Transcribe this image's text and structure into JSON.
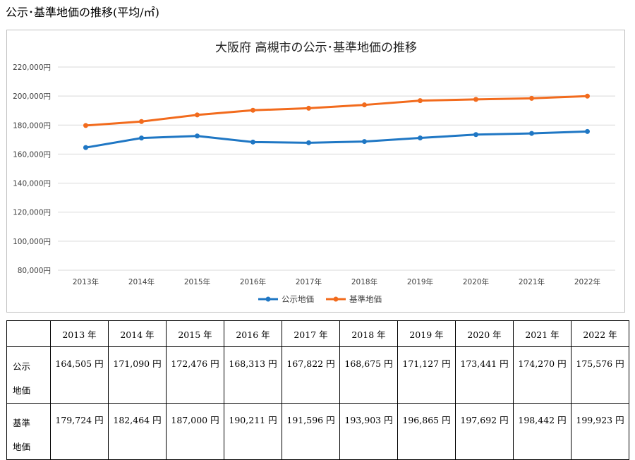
{
  "page": {
    "heading": "公示･基準地価の推移(平均/㎡)"
  },
  "chart_data": {
    "type": "line",
    "title": "大阪府 高槻市の公示･基準地価の推移",
    "categories": [
      "2013年",
      "2014年",
      "2015年",
      "2016年",
      "2017年",
      "2018年",
      "2019年",
      "2020年",
      "2021年",
      "2022年"
    ],
    "series": [
      {
        "name": "公示地価",
        "color": "#1f77c4",
        "values": [
          164505,
          171090,
          172476,
          168313,
          167822,
          168675,
          171127,
          173441,
          174270,
          175576
        ]
      },
      {
        "name": "基準地価",
        "color": "#f26b1d",
        "values": [
          179724,
          182464,
          187000,
          190211,
          191596,
          193903,
          196865,
          197692,
          198442,
          199923
        ]
      }
    ],
    "ylim": [
      80000,
      220000
    ],
    "yticks": [
      80000,
      100000,
      120000,
      140000,
      160000,
      180000,
      200000,
      220000
    ],
    "ytick_labels": [
      "80,000円",
      "100,000円",
      "120,000円",
      "140,000円",
      "160,000円",
      "180,000円",
      "200,000円",
      "220,000円"
    ],
    "grid": true,
    "legend": "bottom"
  },
  "table": {
    "headers": [
      "2013 年",
      "2014 年",
      "2015 年",
      "2016 年",
      "2017 年",
      "2018 年",
      "2019 年",
      "2020 年",
      "2021 年",
      "2022 年"
    ],
    "rows": [
      {
        "label_line1": "公示",
        "label_line2": "地価",
        "cells": [
          "164,505 円",
          "171,090 円",
          "172,476 円",
          "168,313 円",
          "167,822 円",
          "168,675 円",
          "171,127 円",
          "173,441 円",
          "174,270 円",
          "175,576 円"
        ]
      },
      {
        "label_line1": "基準",
        "label_line2": "地価",
        "cells": [
          "179,724 円",
          "182,464 円",
          "187,000 円",
          "190,211 円",
          "191,596 円",
          "193,903 円",
          "196,865 円",
          "197,692 円",
          "198,442 円",
          "199,923 円"
        ]
      }
    ]
  }
}
